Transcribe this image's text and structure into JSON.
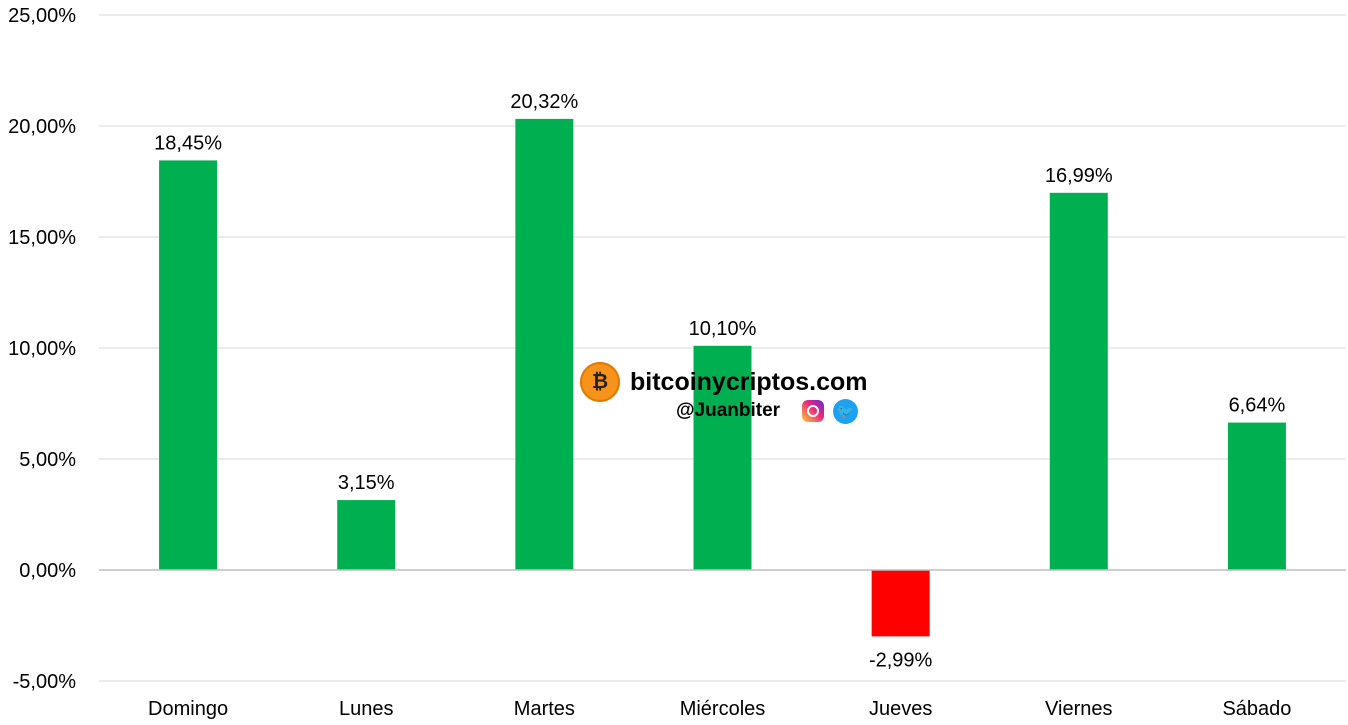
{
  "chart_data": {
    "type": "bar",
    "categories": [
      "Domingo",
      "Lunes",
      "Martes",
      "Miércoles",
      "Jueves",
      "Viernes",
      "Sábado"
    ],
    "values": [
      18.45,
      3.15,
      20.32,
      10.1,
      -2.99,
      16.99,
      6.64
    ],
    "data_labels": [
      "18,45%",
      "3,15%",
      "20,32%",
      "10,10%",
      "-2,99%",
      "16,99%",
      "6,64%"
    ],
    "ylim": [
      -5,
      25
    ],
    "yticks": [
      -5,
      0,
      5,
      10,
      15,
      20,
      25
    ],
    "ytick_labels": [
      "-5,00%",
      "0,00%",
      "5,00%",
      "10,00%",
      "15,00%",
      "20,00%",
      "25,00%"
    ],
    "grid": true,
    "colors": {
      "positive": "#00b050",
      "negative": "#ff0000",
      "grid": "#d9d9d9",
      "axis": "#bfbfbf"
    }
  },
  "watermark": {
    "site": "bitcoinycriptos.com",
    "handle": "@Juanbiter",
    "logo_icon": "bitcoin-microphone-icon",
    "social_icons": [
      "instagram-icon",
      "twitter-icon"
    ]
  }
}
